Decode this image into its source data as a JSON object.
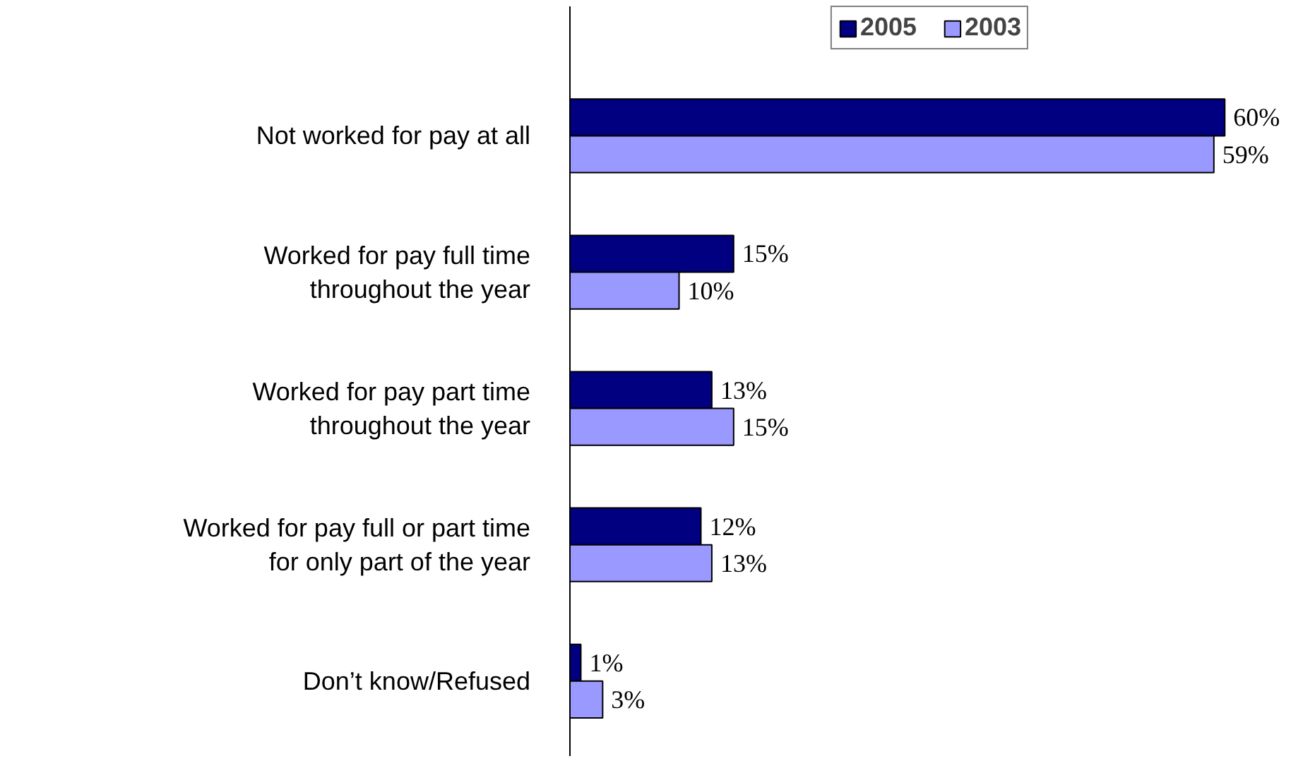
{
  "chart_data": {
    "type": "bar",
    "orientation": "horizontal",
    "categories": [
      "Not worked for pay at all",
      "Worked for pay full time throughout the year",
      "Worked for pay part time throughout the year",
      "Worked for pay full or part time for only part of the year",
      "Don’t know/Refused"
    ],
    "series": [
      {
        "name": "2005",
        "color": "#000080",
        "values": [
          60,
          15,
          13,
          12,
          1
        ],
        "value_labels": [
          "60%",
          "15%",
          "13%",
          "12%",
          "1%"
        ]
      },
      {
        "name": "2003",
        "color": "#9999ff",
        "values": [
          59,
          10,
          15,
          13,
          3
        ],
        "value_labels": [
          "59%",
          "10%",
          "15%",
          "13%",
          "3%"
        ]
      }
    ],
    "legend": "top",
    "grid": false,
    "tick_labels": "y"
  }
}
